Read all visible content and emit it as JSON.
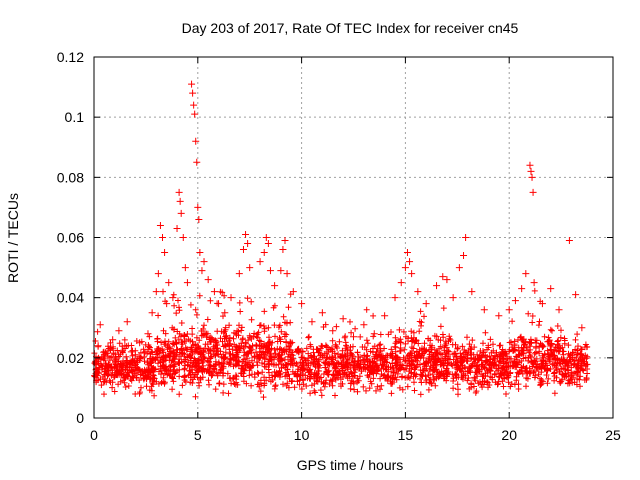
{
  "chart_data": {
    "type": "scatter",
    "title": "Day 203 of 2017, Rate Of TEC Index for receiver cn45",
    "xlabel": "GPS time / hours",
    "ylabel": "ROTI / TECUs",
    "xlim": [
      0,
      25
    ],
    "ylim": [
      0,
      0.12
    ],
    "x_ticks": [
      0,
      5,
      10,
      15,
      20,
      25
    ],
    "x_tick_labels": [
      "0",
      "5",
      "10",
      "15",
      "20",
      "25"
    ],
    "y_ticks": [
      0,
      0.02,
      0.04,
      0.06,
      0.08,
      0.1,
      0.12
    ],
    "y_tick_labels": [
      "0",
      "0.02",
      "0.04",
      "0.06",
      "0.08",
      "0.1",
      "0.12"
    ],
    "grid": true,
    "marker": "+",
    "color": "#ff0000",
    "series": [
      {
        "name": "ROTI",
        "points": [
          [
            0.1,
            0.018
          ],
          [
            0.2,
            0.024
          ],
          [
            0.3,
            0.031
          ],
          [
            0.5,
            0.021
          ],
          [
            0.7,
            0.016
          ],
          [
            0.9,
            0.026
          ],
          [
            1.0,
            0.014
          ],
          [
            1.2,
            0.029
          ],
          [
            1.4,
            0.019
          ],
          [
            1.6,
            0.032
          ],
          [
            1.8,
            0.022
          ],
          [
            2.0,
            0.017
          ],
          [
            2.2,
            0.025
          ],
          [
            2.4,
            0.013
          ],
          [
            2.6,
            0.028
          ],
          [
            2.8,
            0.035
          ],
          [
            3.0,
            0.042
          ],
          [
            3.1,
            0.048
          ],
          [
            3.2,
            0.064
          ],
          [
            3.3,
            0.06
          ],
          [
            3.4,
            0.055
          ],
          [
            3.5,
            0.038
          ],
          [
            3.6,
            0.045
          ],
          [
            3.8,
            0.04
          ],
          [
            4.0,
            0.063
          ],
          [
            4.1,
            0.075
          ],
          [
            4.15,
            0.072
          ],
          [
            4.2,
            0.068
          ],
          [
            4.3,
            0.06
          ],
          [
            4.4,
            0.05
          ],
          [
            4.5,
            0.045
          ],
          [
            4.7,
            0.111
          ],
          [
            4.75,
            0.108
          ],
          [
            4.8,
            0.104
          ],
          [
            4.85,
            0.101
          ],
          [
            4.9,
            0.092
          ],
          [
            4.95,
            0.085
          ],
          [
            5.0,
            0.07
          ],
          [
            5.05,
            0.066
          ],
          [
            5.1,
            0.055
          ],
          [
            5.2,
            0.049
          ],
          [
            5.3,
            0.052
          ],
          [
            5.5,
            0.046
          ],
          [
            5.8,
            0.042
          ],
          [
            6.0,
            0.038
          ],
          [
            6.3,
            0.035
          ],
          [
            6.6,
            0.04
          ],
          [
            7.0,
            0.048
          ],
          [
            7.2,
            0.056
          ],
          [
            7.3,
            0.061
          ],
          [
            7.4,
            0.058
          ],
          [
            7.5,
            0.05
          ],
          [
            8.0,
            0.052
          ],
          [
            8.2,
            0.055
          ],
          [
            8.3,
            0.06
          ],
          [
            8.4,
            0.058
          ],
          [
            8.5,
            0.049
          ],
          [
            8.7,
            0.044
          ],
          [
            9.0,
            0.049
          ],
          [
            9.1,
            0.056
          ],
          [
            9.2,
            0.059
          ],
          [
            9.3,
            0.048
          ],
          [
            9.6,
            0.042
          ],
          [
            10.0,
            0.038
          ],
          [
            10.5,
            0.032
          ],
          [
            11.0,
            0.035
          ],
          [
            11.5,
            0.029
          ],
          [
            12.0,
            0.033
          ],
          [
            12.5,
            0.027
          ],
          [
            13.0,
            0.031
          ],
          [
            13.5,
            0.028
          ],
          [
            14.0,
            0.034
          ],
          [
            14.5,
            0.04
          ],
          [
            14.8,
            0.045
          ],
          [
            15.0,
            0.05
          ],
          [
            15.1,
            0.055
          ],
          [
            15.2,
            0.052
          ],
          [
            15.3,
            0.048
          ],
          [
            15.6,
            0.042
          ],
          [
            16.0,
            0.038
          ],
          [
            16.5,
            0.044
          ],
          [
            16.8,
            0.047
          ],
          [
            17.0,
            0.046
          ],
          [
            17.3,
            0.04
          ],
          [
            17.6,
            0.05
          ],
          [
            17.8,
            0.054
          ],
          [
            17.9,
            0.06
          ],
          [
            18.2,
            0.042
          ],
          [
            18.8,
            0.036
          ],
          [
            19.5,
            0.034
          ],
          [
            20.0,
            0.036
          ],
          [
            20.3,
            0.039
          ],
          [
            20.6,
            0.043
          ],
          [
            20.8,
            0.048
          ],
          [
            21.0,
            0.084
          ],
          [
            21.05,
            0.082
          ],
          [
            21.1,
            0.08
          ],
          [
            21.15,
            0.075
          ],
          [
            21.2,
            0.045
          ],
          [
            21.6,
            0.038
          ],
          [
            22.0,
            0.043
          ],
          [
            22.4,
            0.036
          ],
          [
            22.9,
            0.059
          ],
          [
            23.2,
            0.041
          ],
          [
            23.5,
            0.03
          ]
        ]
      }
    ]
  }
}
